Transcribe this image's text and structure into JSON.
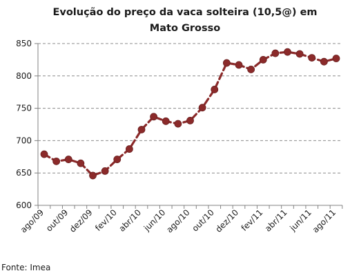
{
  "chart_data": {
    "type": "line",
    "title_lines": [
      "Evolução do preço da vaca solteira (10,5@) em",
      "Mato Grosso"
    ],
    "xlabel": "",
    "ylabel": "",
    "ylim": [
      600,
      850
    ],
    "yticks": [
      600,
      650,
      700,
      750,
      800,
      850
    ],
    "grid": "horizontal dashed",
    "x_tick_labels": [
      "ago/09",
      "out/09",
      "dez/09",
      "fev/10",
      "abr/10",
      "jun/10",
      "ago/10",
      "out/10",
      "dez/10",
      "fev/11",
      "abr/11",
      "jun/11",
      "ago/11"
    ],
    "series": [
      {
        "values": [
          679,
          668,
          671,
          665,
          646,
          653,
          671,
          687,
          717,
          737,
          730,
          726,
          731,
          751,
          779,
          820,
          817,
          810,
          825,
          835,
          837,
          834,
          828,
          822,
          827
        ],
        "color": "#8B2A2A"
      }
    ]
  },
  "source": "Fonte: Imea"
}
